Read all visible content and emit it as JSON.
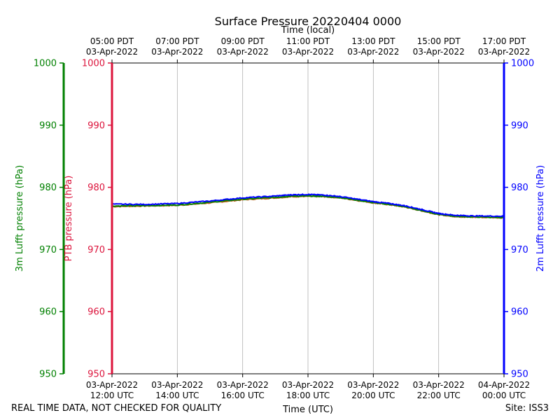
{
  "chart_data": {
    "type": "line",
    "title": "Surface Pressure 20220404 0000",
    "xlabel": "Time (UTC)",
    "top_xlabel": "Time (local)",
    "x_range_utc_hours": [
      12,
      24
    ],
    "bottom_ticks": [
      {
        "x": 12,
        "line1": "03-Apr-2022",
        "line2": "12:00 UTC"
      },
      {
        "x": 14,
        "line1": "03-Apr-2022",
        "line2": "14:00 UTC"
      },
      {
        "x": 16,
        "line1": "03-Apr-2022",
        "line2": "16:00 UTC"
      },
      {
        "x": 18,
        "line1": "03-Apr-2022",
        "line2": "18:00 UTC"
      },
      {
        "x": 20,
        "line1": "03-Apr-2022",
        "line2": "20:00 UTC"
      },
      {
        "x": 22,
        "line1": "03-Apr-2022",
        "line2": "22:00 UTC"
      },
      {
        "x": 24,
        "line1": "04-Apr-2022",
        "line2": "00:00 UTC"
      }
    ],
    "top_ticks": [
      {
        "x": 12,
        "line1": "05:00 PDT",
        "line2": "03-Apr-2022"
      },
      {
        "x": 14,
        "line1": "07:00 PDT",
        "line2": "03-Apr-2022"
      },
      {
        "x": 16,
        "line1": "09:00 PDT",
        "line2": "03-Apr-2022"
      },
      {
        "x": 18,
        "line1": "11:00 PDT",
        "line2": "03-Apr-2022"
      },
      {
        "x": 20,
        "line1": "13:00 PDT",
        "line2": "03-Apr-2022"
      },
      {
        "x": 22,
        "line1": "15:00 PDT",
        "line2": "03-Apr-2022"
      },
      {
        "x": 24,
        "line1": "17:00 PDT",
        "line2": "03-Apr-2022"
      }
    ],
    "ylim": [
      950,
      1000
    ],
    "yticks": [
      950,
      960,
      970,
      980,
      990,
      1000
    ],
    "grid": "vertical",
    "axes": [
      {
        "name": "3m Lufft pressure (hPa)",
        "color": "#008000",
        "side": "left-outer"
      },
      {
        "name": "PTB pressure (hPa)",
        "color": "#dc143c",
        "side": "left-inner"
      },
      {
        "name": "2m Lufft pressure (hPa)",
        "color": "#0000ff",
        "side": "right"
      }
    ],
    "x": [
      12,
      13,
      14,
      15,
      16,
      17,
      17.5,
      18,
      18.5,
      19,
      20,
      20.5,
      21,
      21.5,
      22,
      22.5,
      23,
      24
    ],
    "series": [
      {
        "name": "PTB pressure (hPa)",
        "color": "#b5651d",
        "values": [
          976.9,
          977.0,
          977.1,
          977.5,
          978.0,
          978.3,
          978.5,
          978.55,
          978.5,
          978.3,
          977.5,
          977.2,
          976.8,
          976.2,
          975.6,
          975.3,
          975.2,
          975.1
        ]
      },
      {
        "name": "3m Lufft pressure (hPa)",
        "color": "#008000",
        "values": [
          977.0,
          977.05,
          977.15,
          977.6,
          978.1,
          978.4,
          978.6,
          978.6,
          978.55,
          978.35,
          977.55,
          977.25,
          976.85,
          976.25,
          975.65,
          975.35,
          975.25,
          975.15
        ]
      },
      {
        "name": "2m Lufft pressure (hPa)",
        "color": "#0000ff",
        "values": [
          977.3,
          977.25,
          977.4,
          977.8,
          978.3,
          978.6,
          978.8,
          978.85,
          978.75,
          978.5,
          977.7,
          977.4,
          977.0,
          976.4,
          975.8,
          975.5,
          975.4,
          975.35
        ]
      }
    ]
  },
  "footer": {
    "quality_note": "REAL TIME DATA, NOT CHECKED FOR QUALITY",
    "site": "Site: ISS3"
  }
}
